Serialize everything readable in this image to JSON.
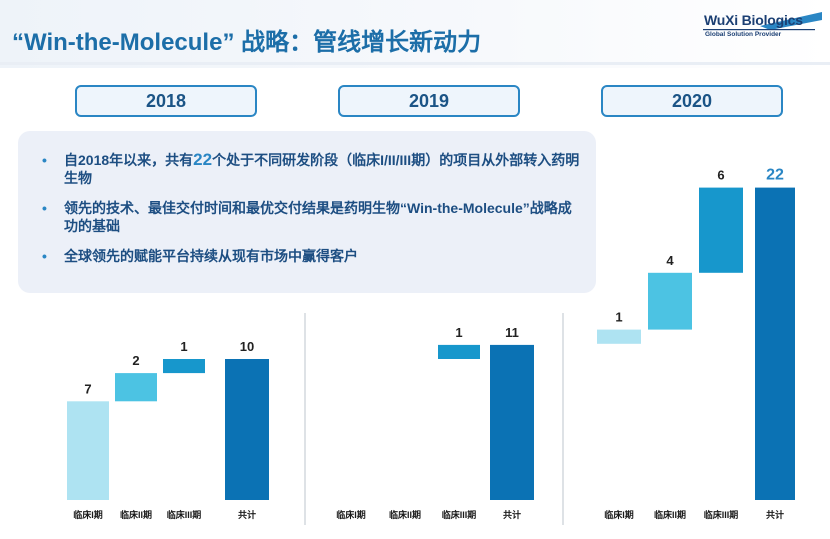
{
  "slide": {
    "title": "“Win-the-Molecule” 战略：管线增长新动力"
  },
  "logo": {
    "name": "WuXi Biologics",
    "tagline": "Global Solution Provider"
  },
  "years": [
    "2018",
    "2019",
    "2020"
  ],
  "bullets": [
    {
      "before": "自2018年以来，共有",
      "highlight": "22",
      "after": "个处于不同研发阶段（临床I/II/III期）的项目从外部转入药明生物"
    },
    {
      "before": "领先的技术、最佳交付时间和最优交付结果是药明生物“Win-the-Molecule”战略成功的基础",
      "highlight": "",
      "after": ""
    },
    {
      "before": "全球领先的赋能平台持续从现有市场中赢得客户",
      "highlight": "",
      "after": ""
    }
  ],
  "colors": {
    "phase1": "#aee3f2",
    "phase2": "#4cc3e3",
    "phase3": "#1797cc",
    "total": "#0b72b4",
    "accent": "#2a86c4",
    "title": "#1c6ea8"
  },
  "chart_data": [
    {
      "type": "bar",
      "subtype": "waterfall",
      "year": "2018",
      "categories": [
        "临床I期",
        "临床II期",
        "临床III期",
        "共计"
      ],
      "values": [
        7,
        2,
        1,
        10
      ],
      "labels": [
        "7",
        "2",
        "1",
        "10"
      ],
      "ylim": [
        0,
        22
      ]
    },
    {
      "type": "bar",
      "subtype": "waterfall",
      "year": "2019",
      "categories": [
        "临床I期",
        "临床II期",
        "临床III期",
        "共计"
      ],
      "values": [
        0,
        0,
        1,
        11
      ],
      "base": 10,
      "labels": [
        "",
        "",
        "1",
        "11"
      ],
      "ylim": [
        0,
        22
      ]
    },
    {
      "type": "bar",
      "subtype": "waterfall",
      "year": "2020",
      "categories": [
        "临床I期",
        "临床II期",
        "临床III期",
        "共计"
      ],
      "values": [
        1,
        4,
        6,
        22
      ],
      "base": 11,
      "labels": [
        "1",
        "4",
        "6",
        "22"
      ],
      "ylim": [
        0,
        22
      ]
    }
  ]
}
